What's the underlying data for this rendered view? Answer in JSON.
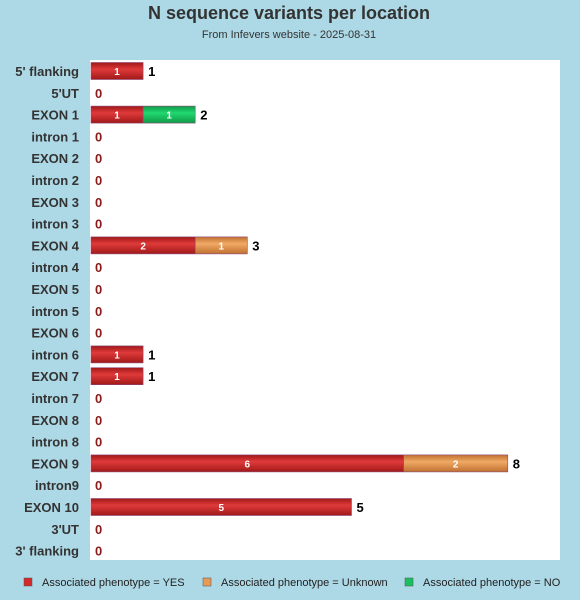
{
  "colors": {
    "background": "#add8e6",
    "plot_background": "#ffffff",
    "yes": "#d42a2a",
    "unknown": "#e69a55",
    "no": "#18c060",
    "zero_label": "#8b1a1a",
    "text": "#333333"
  },
  "chart_data": {
    "type": "bar",
    "orientation": "horizontal",
    "stacked": true,
    "title": "N sequence variants per location",
    "subtitle": "From Infevers website - 2025-08-31",
    "xlim": [
      0,
      8
    ],
    "grid": false,
    "legend_position": "bottom",
    "categories": [
      "5' flanking",
      "5'UT",
      "EXON 1",
      "intron 1",
      "EXON 2",
      "intron 2",
      "EXON 3",
      "intron 3",
      "EXON 4",
      "intron 4",
      "EXON 5",
      "intron 5",
      "EXON 6",
      "intron 6",
      "EXON 7",
      "intron 7",
      "EXON 8",
      "intron 8",
      "EXON 9",
      "intron9",
      "EXON 10",
      "3'UT",
      "3' flanking"
    ],
    "series": [
      {
        "name": "Associated phenotype = YES",
        "color_key": "yes",
        "values": [
          1,
          0,
          1,
          0,
          0,
          0,
          0,
          0,
          2,
          0,
          0,
          0,
          0,
          1,
          1,
          0,
          0,
          0,
          6,
          0,
          5,
          0,
          0
        ]
      },
      {
        "name": "Associated phenotype = Unknown",
        "color_key": "unknown",
        "values": [
          0,
          0,
          0,
          0,
          0,
          0,
          0,
          0,
          1,
          0,
          0,
          0,
          0,
          0,
          0,
          0,
          0,
          0,
          2,
          0,
          0,
          0,
          0
        ]
      },
      {
        "name": "Associated phenotype = NO",
        "color_key": "no",
        "values": [
          0,
          0,
          1,
          0,
          0,
          0,
          0,
          0,
          0,
          0,
          0,
          0,
          0,
          0,
          0,
          0,
          0,
          0,
          0,
          0,
          0,
          0,
          0
        ]
      }
    ]
  }
}
